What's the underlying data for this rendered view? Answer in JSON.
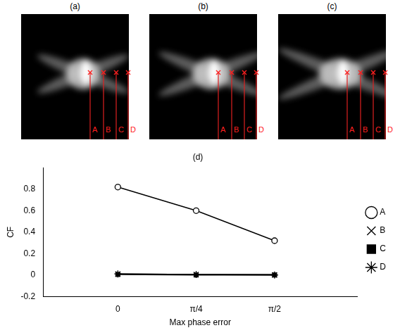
{
  "panels": [
    {
      "title": "(a)",
      "markers": [
        "A",
        "B",
        "C",
        "D"
      ]
    },
    {
      "title": "(b)",
      "markers": [
        "A",
        "B",
        "C",
        "D"
      ]
    },
    {
      "title": "(c)",
      "markers": [
        "A",
        "B",
        "C",
        "D"
      ]
    }
  ],
  "chart_data": {
    "type": "line",
    "title": "(d)",
    "x_label": "Max phase error",
    "y_label": "CF",
    "x": [
      0,
      0.785,
      1.571
    ],
    "series": [
      {
        "name": "A",
        "color": "#000000",
        "marker": "circle",
        "values": [
          0.82,
          0.6,
          0.32
        ]
      },
      {
        "name": "B",
        "color": "#000000",
        "marker": "cross",
        "values": [
          0.01,
          0.005,
          0.005
        ]
      },
      {
        "name": "C",
        "color": "#000000",
        "marker": "square",
        "values": [
          0.005,
          0.0,
          0.0
        ]
      },
      {
        "name": "D",
        "color": "#000000",
        "marker": "star",
        "values": [
          0.01,
          0.005,
          0.0
        ]
      }
    ],
    "xlim": [
      -0.75,
      2.4
    ],
    "xticks": [
      0,
      {
        "value": 0.785,
        "label": "π/4"
      },
      {
        "value": 1.571,
        "label": "π/2"
      }
    ],
    "ylim": [
      -0.2,
      1.0
    ],
    "yticks": [
      -0.2,
      0,
      0.2,
      0.4,
      0.6,
      0.8
    ],
    "grid": false,
    "legend": "right"
  }
}
